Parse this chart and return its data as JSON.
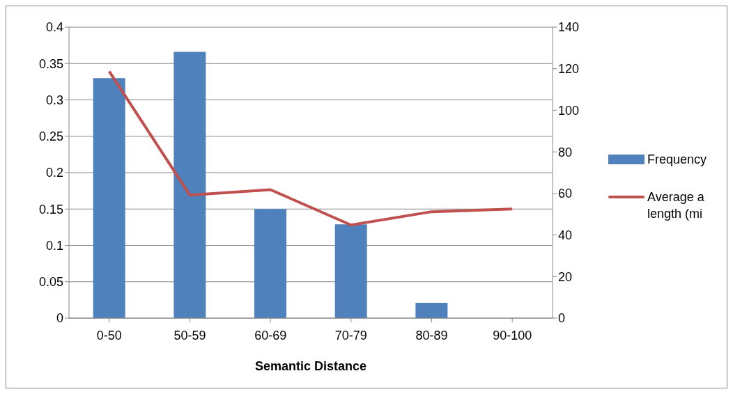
{
  "chart_data": {
    "type": "bar",
    "xlabel": "Semantic Distance",
    "categories": [
      "0-50",
      "50-59",
      "60-69",
      "70-79",
      "80-89",
      "90-100"
    ],
    "series": [
      {
        "name": "Frequency",
        "color": "#4f81bd",
        "values": [
          0.33,
          0.366,
          0.15,
          0.129,
          0.021,
          0
        ]
      },
      {
        "name": "Average a length (mi",
        "type": "line",
        "axis": "y2",
        "color": "#c0504d",
        "values": [
          118.7,
          59.2,
          61.8,
          44.8,
          51.2,
          52.5
        ]
      }
    ],
    "ylim": [
      0,
      0.4
    ],
    "yticks": [
      0,
      0.05,
      0.1,
      0.15,
      0.2,
      0.25,
      0.3,
      0.35,
      0.4
    ],
    "y2lim": [
      0,
      140
    ],
    "y2ticks": [
      0,
      20,
      40,
      60,
      80,
      100,
      120,
      140
    ],
    "grid": "y",
    "legend": "right",
    "marker": "none"
  }
}
